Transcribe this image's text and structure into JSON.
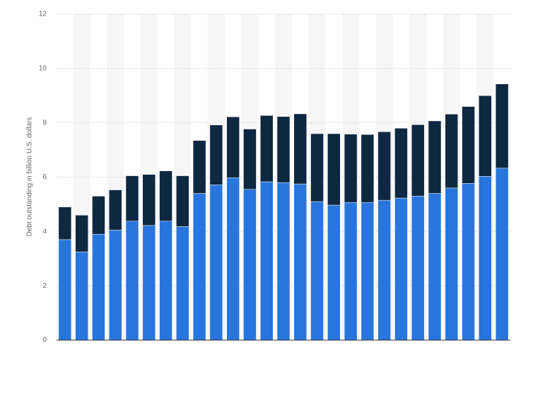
{
  "chart_data": {
    "type": "stacked-bar",
    "y_axis_label": "Debt outstanding in billion U.S. dollars",
    "categories": [
      null,
      null,
      null,
      null,
      null,
      null,
      null,
      null,
      null,
      null,
      null,
      null,
      null,
      null,
      null,
      null,
      null,
      null,
      null,
      null,
      null,
      null,
      null,
      null,
      null,
      null,
      null
    ],
    "series": [
      {
        "color": "#2876dd",
        "values": [
          3.7,
          3.25,
          3.9,
          4.05,
          4.38,
          4.22,
          4.38,
          4.18,
          5.4,
          5.72,
          5.98,
          5.55,
          5.83,
          5.8,
          5.75,
          5.1,
          4.97,
          5.07,
          5.07,
          5.15,
          5.23,
          5.3,
          5.4,
          5.6,
          5.77,
          6.03,
          6.33
        ]
      },
      {
        "color": "#0f2841",
        "values": [
          1.2,
          1.35,
          1.4,
          1.48,
          1.67,
          1.88,
          1.85,
          1.87,
          1.95,
          2.2,
          2.24,
          2.22,
          2.44,
          2.43,
          2.58,
          2.5,
          2.63,
          2.51,
          2.5,
          2.52,
          2.57,
          2.63,
          2.67,
          2.72,
          2.83,
          2.97,
          3.1
        ]
      }
    ],
    "ylim": [
      0,
      12
    ],
    "yticks": [
      0,
      2,
      4,
      6,
      8,
      10,
      12
    ],
    "grid": true
  }
}
